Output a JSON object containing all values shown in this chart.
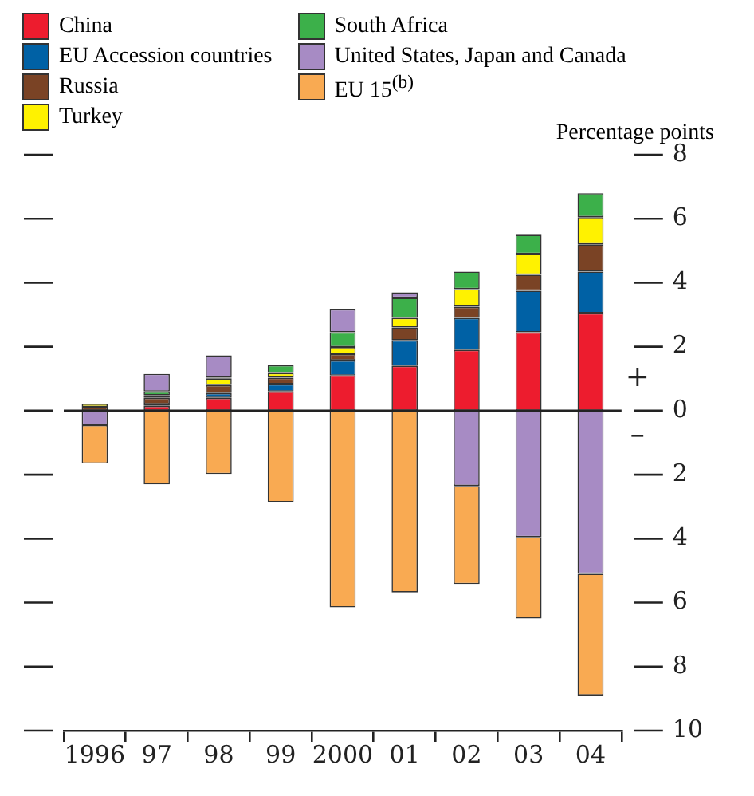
{
  "chart_data": {
    "type": "bar",
    "stacked": true,
    "ylabel": "Percentage points",
    "legend": "top",
    "grid": "y",
    "categories": [
      "1996",
      "97",
      "98",
      "99",
      "2000",
      "01",
      "02",
      "03",
      "04"
    ],
    "ylim": [
      -10,
      8
    ],
    "yticks": [
      {
        "value": -10,
        "label": "10"
      },
      {
        "value": -8,
        "label": "8"
      },
      {
        "value": -6,
        "label": "6"
      },
      {
        "value": -4,
        "label": "4"
      },
      {
        "value": -2,
        "label": "2"
      },
      0,
      2,
      4,
      6,
      8
    ],
    "annotations": [
      "+",
      "–"
    ],
    "series": [
      {
        "name": "China",
        "color": "#ed1c2e",
        "values": [
          null,
          0.15,
          0.4,
          0.6,
          1.1,
          1.4,
          1.9,
          2.45,
          3.05
        ]
      },
      {
        "name": "EU Accession countries",
        "color": "#0061a5",
        "values": [
          null,
          0.05,
          0.15,
          0.23,
          0.47,
          0.8,
          1.0,
          1.3,
          1.3
        ]
      },
      {
        "name": "Russia",
        "color": "#7a4325",
        "values": [
          0.12,
          0.2,
          0.25,
          0.2,
          0.2,
          0.4,
          0.35,
          0.5,
          0.85
        ]
      },
      {
        "name": "Turkey",
        "color": "#fff200",
        "values": [
          0.1,
          0.08,
          0.2,
          0.15,
          0.22,
          0.3,
          0.55,
          0.65,
          0.85
        ]
      },
      {
        "name": "South Africa",
        "color": "#3cb04a",
        "values": [
          null,
          0.12,
          0.03,
          0.24,
          0.46,
          0.63,
          0.55,
          0.6,
          0.75
        ]
      },
      {
        "name": "United States, Japan and Canada",
        "color": "#a78bc4",
        "values": [
          -0.45,
          0.55,
          0.7,
          0,
          0.72,
          0.17,
          -2.35,
          -3.95,
          -5.1
        ]
      },
      {
        "name": "EU 15$^{(b)}$",
        "color": "#f9aa52",
        "values": [
          -1.2,
          -2.3,
          -1.98,
          -2.86,
          -6.15,
          -5.68,
          -3.07,
          -2.55,
          -3.8
        ]
      }
    ]
  }
}
